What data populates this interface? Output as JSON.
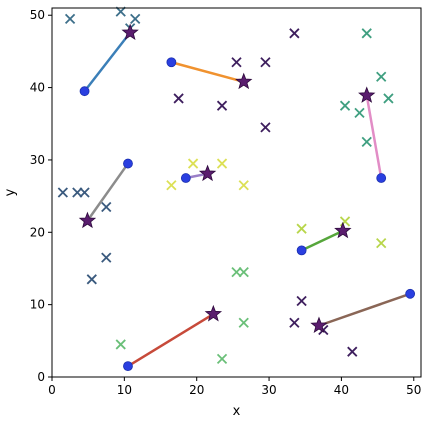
{
  "chart_data": {
    "type": "scatter",
    "title": "",
    "xlabel": "x",
    "ylabel": "y",
    "xlim": [
      0,
      51
    ],
    "ylim": [
      0,
      51
    ],
    "xticks": [
      0,
      10,
      20,
      30,
      40,
      50
    ],
    "yticks": [
      0,
      10,
      20,
      30,
      40,
      50
    ],
    "grid": false,
    "legend": "none",
    "groups": [
      {
        "color": "#3b7fb8",
        "marker_color": "#3d6f8a",
        "dot": [
          4.5,
          39.5
        ],
        "star": [
          10.8,
          47.6
        ],
        "crosses": [
          [
            2.5,
            49.5
          ],
          [
            9.5,
            50.5
          ],
          [
            11.5,
            49.5
          ],
          [
            10.8,
            48.2
          ]
        ]
      },
      {
        "color": "#f0922f",
        "marker_color": "#3e1f5e",
        "dot": [
          16.5,
          43.5
        ],
        "star": [
          26.5,
          40.8
        ],
        "crosses": [
          [
            25.5,
            43.5
          ],
          [
            29.5,
            43.5
          ],
          [
            17.5,
            38.5
          ],
          [
            23.5,
            37.5
          ],
          [
            29.5,
            34.5
          ],
          [
            33.5,
            47.5
          ]
        ]
      },
      {
        "color": "#e28dc6",
        "marker_color": "#3f9f80",
        "dot": [
          45.5,
          27.5
        ],
        "star": [
          43.5,
          38.9
        ],
        "crosses": [
          [
            43.5,
            47.5
          ],
          [
            45.5,
            41.5
          ],
          [
            46.5,
            38.5
          ],
          [
            40.5,
            37.5
          ],
          [
            42.5,
            36.5
          ],
          [
            43.5,
            32.5
          ]
        ]
      },
      {
        "color": "#8c8c8c",
        "marker_color": "#3a5a7e",
        "dot": [
          10.5,
          29.5
        ],
        "star": [
          4.9,
          21.6
        ],
        "crosses": [
          [
            1.5,
            25.5
          ],
          [
            3.5,
            25.5
          ],
          [
            4.5,
            25.5
          ],
          [
            7.5,
            23.5
          ],
          [
            7.5,
            16.5
          ],
          [
            5.5,
            13.5
          ]
        ]
      },
      {
        "color": "#9a7fc7",
        "marker_color": "#dce055",
        "dot": [
          18.5,
          27.5
        ],
        "star": [
          21.5,
          28.1
        ],
        "crosses": [
          [
            19.5,
            29.5
          ],
          [
            23.5,
            29.5
          ],
          [
            16.5,
            26.5
          ],
          [
            26.5,
            26.5
          ]
        ]
      },
      {
        "color": "#56a63b",
        "marker_color": "#b8d64b",
        "dot": [
          34.5,
          17.5
        ],
        "star": [
          40.2,
          20.2
        ],
        "crosses": [
          [
            34.5,
            20.5
          ],
          [
            40.5,
            21.5
          ],
          [
            45.5,
            18.5
          ]
        ]
      },
      {
        "color": "#c74a3a",
        "marker_color": "#6abf78",
        "dot": [
          10.5,
          1.5
        ],
        "star": [
          22.3,
          8.7
        ],
        "crosses": [
          [
            9.5,
            4.5
          ],
          [
            25.5,
            14.5
          ],
          [
            26.5,
            14.5
          ],
          [
            26.5,
            7.5
          ],
          [
            23.5,
            2.5
          ]
        ]
      },
      {
        "color": "#8a6656",
        "marker_color": "#3e1f5e",
        "dot": [
          49.5,
          11.5
        ],
        "star": [
          36.9,
          7.1
        ],
        "crosses": [
          [
            34.5,
            10.5
          ],
          [
            33.5,
            7.5
          ],
          [
            37.5,
            6.5
          ],
          [
            41.5,
            3.5
          ]
        ]
      }
    ]
  }
}
